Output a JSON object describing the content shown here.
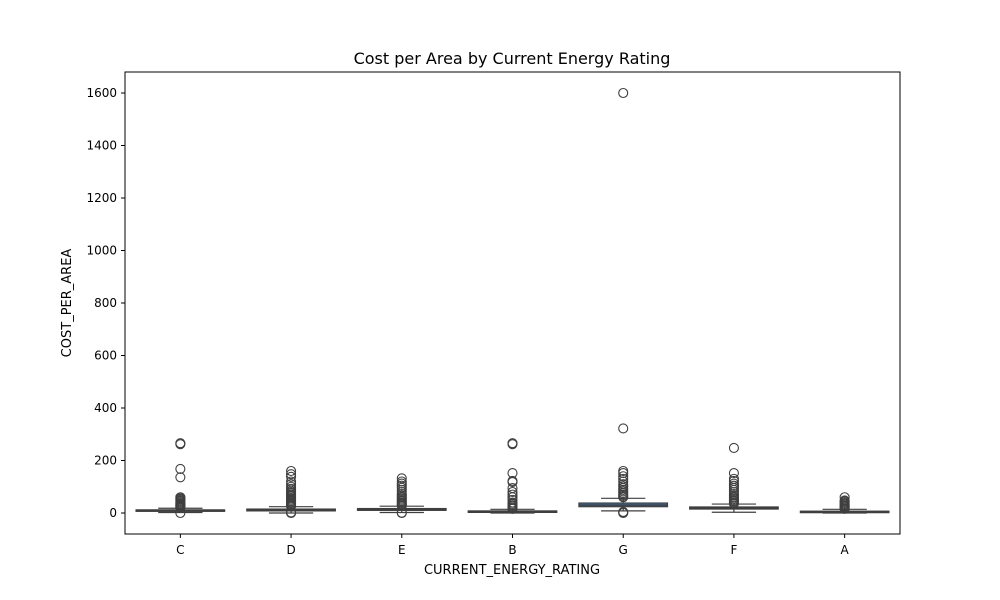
{
  "chart_data": {
    "type": "box",
    "title": "Cost per Area by Current Energy Rating",
    "xlabel": "CURRENT_ENERGY_RATING",
    "ylabel": "COST_PER_AREA",
    "ylim": [
      -80,
      1680
    ],
    "yticks": [
      0,
      200,
      400,
      600,
      800,
      1000,
      1200,
      1400,
      1600
    ],
    "box_color": "#3b75af",
    "line_color": "#3f3f3f",
    "categories": [
      "C",
      "D",
      "E",
      "B",
      "G",
      "F",
      "A"
    ],
    "boxes": [
      {
        "category": "C",
        "whisker_low": 2,
        "q1": 7,
        "median": 9,
        "q3": 12,
        "whisker_high": 18,
        "outliers": [
          0,
          22,
          25,
          28,
          30,
          33,
          36,
          40,
          44,
          48,
          52,
          56,
          60,
          136,
          168,
          262,
          266
        ]
      },
      {
        "category": "D",
        "whisker_low": 0,
        "q1": 8,
        "median": 11,
        "q3": 15,
        "whisker_high": 24,
        "outliers": [
          0,
          1,
          2,
          26,
          30,
          35,
          40,
          45,
          50,
          55,
          60,
          65,
          70,
          75,
          80,
          85,
          92,
          100,
          110,
          120,
          138,
          148,
          160
        ]
      },
      {
        "category": "E",
        "whisker_low": 2,
        "q1": 10,
        "median": 13,
        "q3": 17,
        "whisker_high": 26,
        "outliers": [
          0,
          1,
          28,
          32,
          36,
          40,
          45,
          50,
          55,
          60,
          66,
          72,
          80,
          88,
          96,
          104,
          112,
          120,
          132
        ]
      },
      {
        "category": "B",
        "whisker_low": 0,
        "q1": 3,
        "median": 5,
        "q3": 8,
        "whisker_high": 14,
        "outliers": [
          16,
          20,
          25,
          30,
          35,
          40,
          50,
          60,
          70,
          80,
          95,
          118,
          122,
          152,
          262,
          266
        ]
      },
      {
        "category": "G",
        "whisker_low": 8,
        "q1": 24,
        "median": 30,
        "q3": 38,
        "whisker_high": 56,
        "outliers": [
          0,
          2,
          4,
          60,
          65,
          70,
          76,
          82,
          88,
          95,
          102,
          110,
          120,
          130,
          140,
          152,
          160,
          322,
          1600
        ]
      },
      {
        "category": "F",
        "whisker_low": 3,
        "q1": 15,
        "median": 19,
        "q3": 23,
        "whisker_high": 34,
        "outliers": [
          36,
          40,
          45,
          50,
          55,
          60,
          66,
          72,
          80,
          88,
          96,
          104,
          112,
          122,
          130,
          152,
          248
        ]
      },
      {
        "category": "A",
        "whisker_low": 0,
        "q1": 3,
        "median": 5,
        "q3": 7,
        "whisker_high": 14,
        "outliers": [
          16,
          20,
          24,
          28,
          32,
          36,
          40,
          44,
          48,
          60
        ]
      }
    ]
  }
}
